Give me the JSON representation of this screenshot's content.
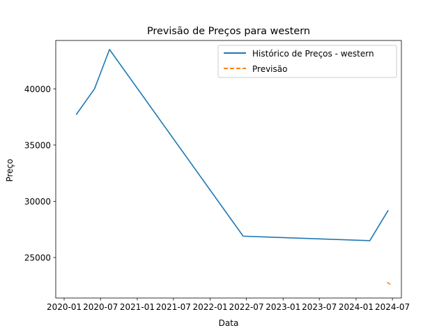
{
  "chart_data": {
    "type": "line",
    "title": "Previsão de Preços para western",
    "xlabel": "Data",
    "ylabel": "Preço",
    "x_ticks": [
      "2020-01",
      "2020-07",
      "2021-01",
      "2021-07",
      "2022-01",
      "2022-07",
      "2023-01",
      "2023-07",
      "2024-01",
      "2024-07"
    ],
    "y_ticks": [
      "25000",
      "30000",
      "35000",
      "40000"
    ],
    "xlim": [
      "2019-11-20",
      "2024-08-15"
    ],
    "ylim": [
      21400,
      44300
    ],
    "grid": false,
    "legend_position": "top-right",
    "series": [
      {
        "name": "Histórico de Preços - western",
        "color": "#1f77b4",
        "style": "solid",
        "points": [
          {
            "x": "2020-03-01",
            "y": 37700
          },
          {
            "x": "2020-06-01",
            "y": 40000
          },
          {
            "x": "2020-08-15",
            "y": 43500
          },
          {
            "x": "2022-06-15",
            "y": 26900
          },
          {
            "x": "2024-03-10",
            "y": 26500
          },
          {
            "x": "2024-06-10",
            "y": 29200
          }
        ]
      },
      {
        "name": "Previsão",
        "color": "#ff7f0e",
        "style": "dashed",
        "points": [
          {
            "x": "2024-06-05",
            "y": 22800
          },
          {
            "x": "2024-06-25",
            "y": 22550
          }
        ]
      }
    ]
  }
}
